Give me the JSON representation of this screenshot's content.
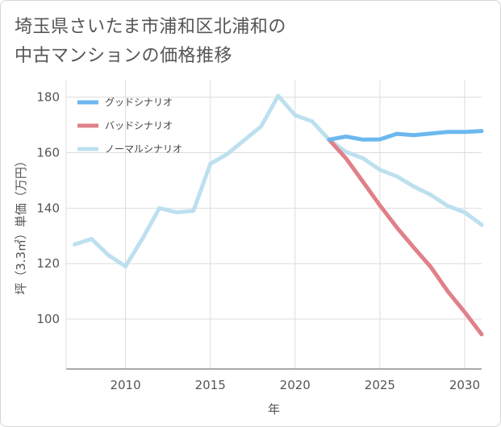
{
  "title_lines": [
    "埼玉県さいたま市浦和区北浦和の",
    "中古マンションの価格推移"
  ],
  "chart_data": {
    "type": "line",
    "xlabel": "年",
    "ylabel": "坪（3.3㎡）単価（万円）",
    "xlim": [
      2006.5,
      2031
    ],
    "ylim": [
      82,
      186
    ],
    "xticks": [
      2010,
      2015,
      2020,
      2025,
      2030
    ],
    "yticks": [
      100,
      120,
      140,
      160,
      180
    ],
    "grid": true,
    "legend_position": "top-left",
    "series": [
      {
        "name": "グッドシナリオ",
        "color": "#6cb8f0",
        "x": [
          2022,
          2023,
          2024,
          2025,
          2026,
          2027,
          2028,
          2029,
          2030,
          2031
        ],
        "values": [
          164.7,
          165.8,
          164.7,
          164.8,
          166.8,
          166.3,
          166.9,
          167.5,
          167.5,
          167.8
        ]
      },
      {
        "name": "バッドシナリオ",
        "color": "#e0808a",
        "x": [
          2022,
          2023,
          2024,
          2025,
          2026,
          2027,
          2028,
          2029,
          2030,
          2031
        ],
        "values": [
          164.7,
          158.0,
          149.5,
          141.0,
          133.0,
          125.8,
          118.8,
          110.0,
          102.5,
          94.5
        ]
      },
      {
        "name": "ノーマルシナリオ",
        "color": "#bde0ef",
        "x": [
          2007,
          2008,
          2009,
          2010,
          2011,
          2012,
          2013,
          2014,
          2015,
          2016,
          2017,
          2018,
          2019,
          2020,
          2021,
          2022,
          2023,
          2024,
          2025,
          2026,
          2027,
          2028,
          2029,
          2030,
          2031
        ],
        "values": [
          126.9,
          128.9,
          123.0,
          119.0,
          129.0,
          140.0,
          138.5,
          139.0,
          156.0,
          159.5,
          164.5,
          169.5,
          180.5,
          173.5,
          171.3,
          164.7,
          160.3,
          158.0,
          153.8,
          151.5,
          147.8,
          144.8,
          140.8,
          138.5,
          134.0
        ]
      }
    ]
  }
}
